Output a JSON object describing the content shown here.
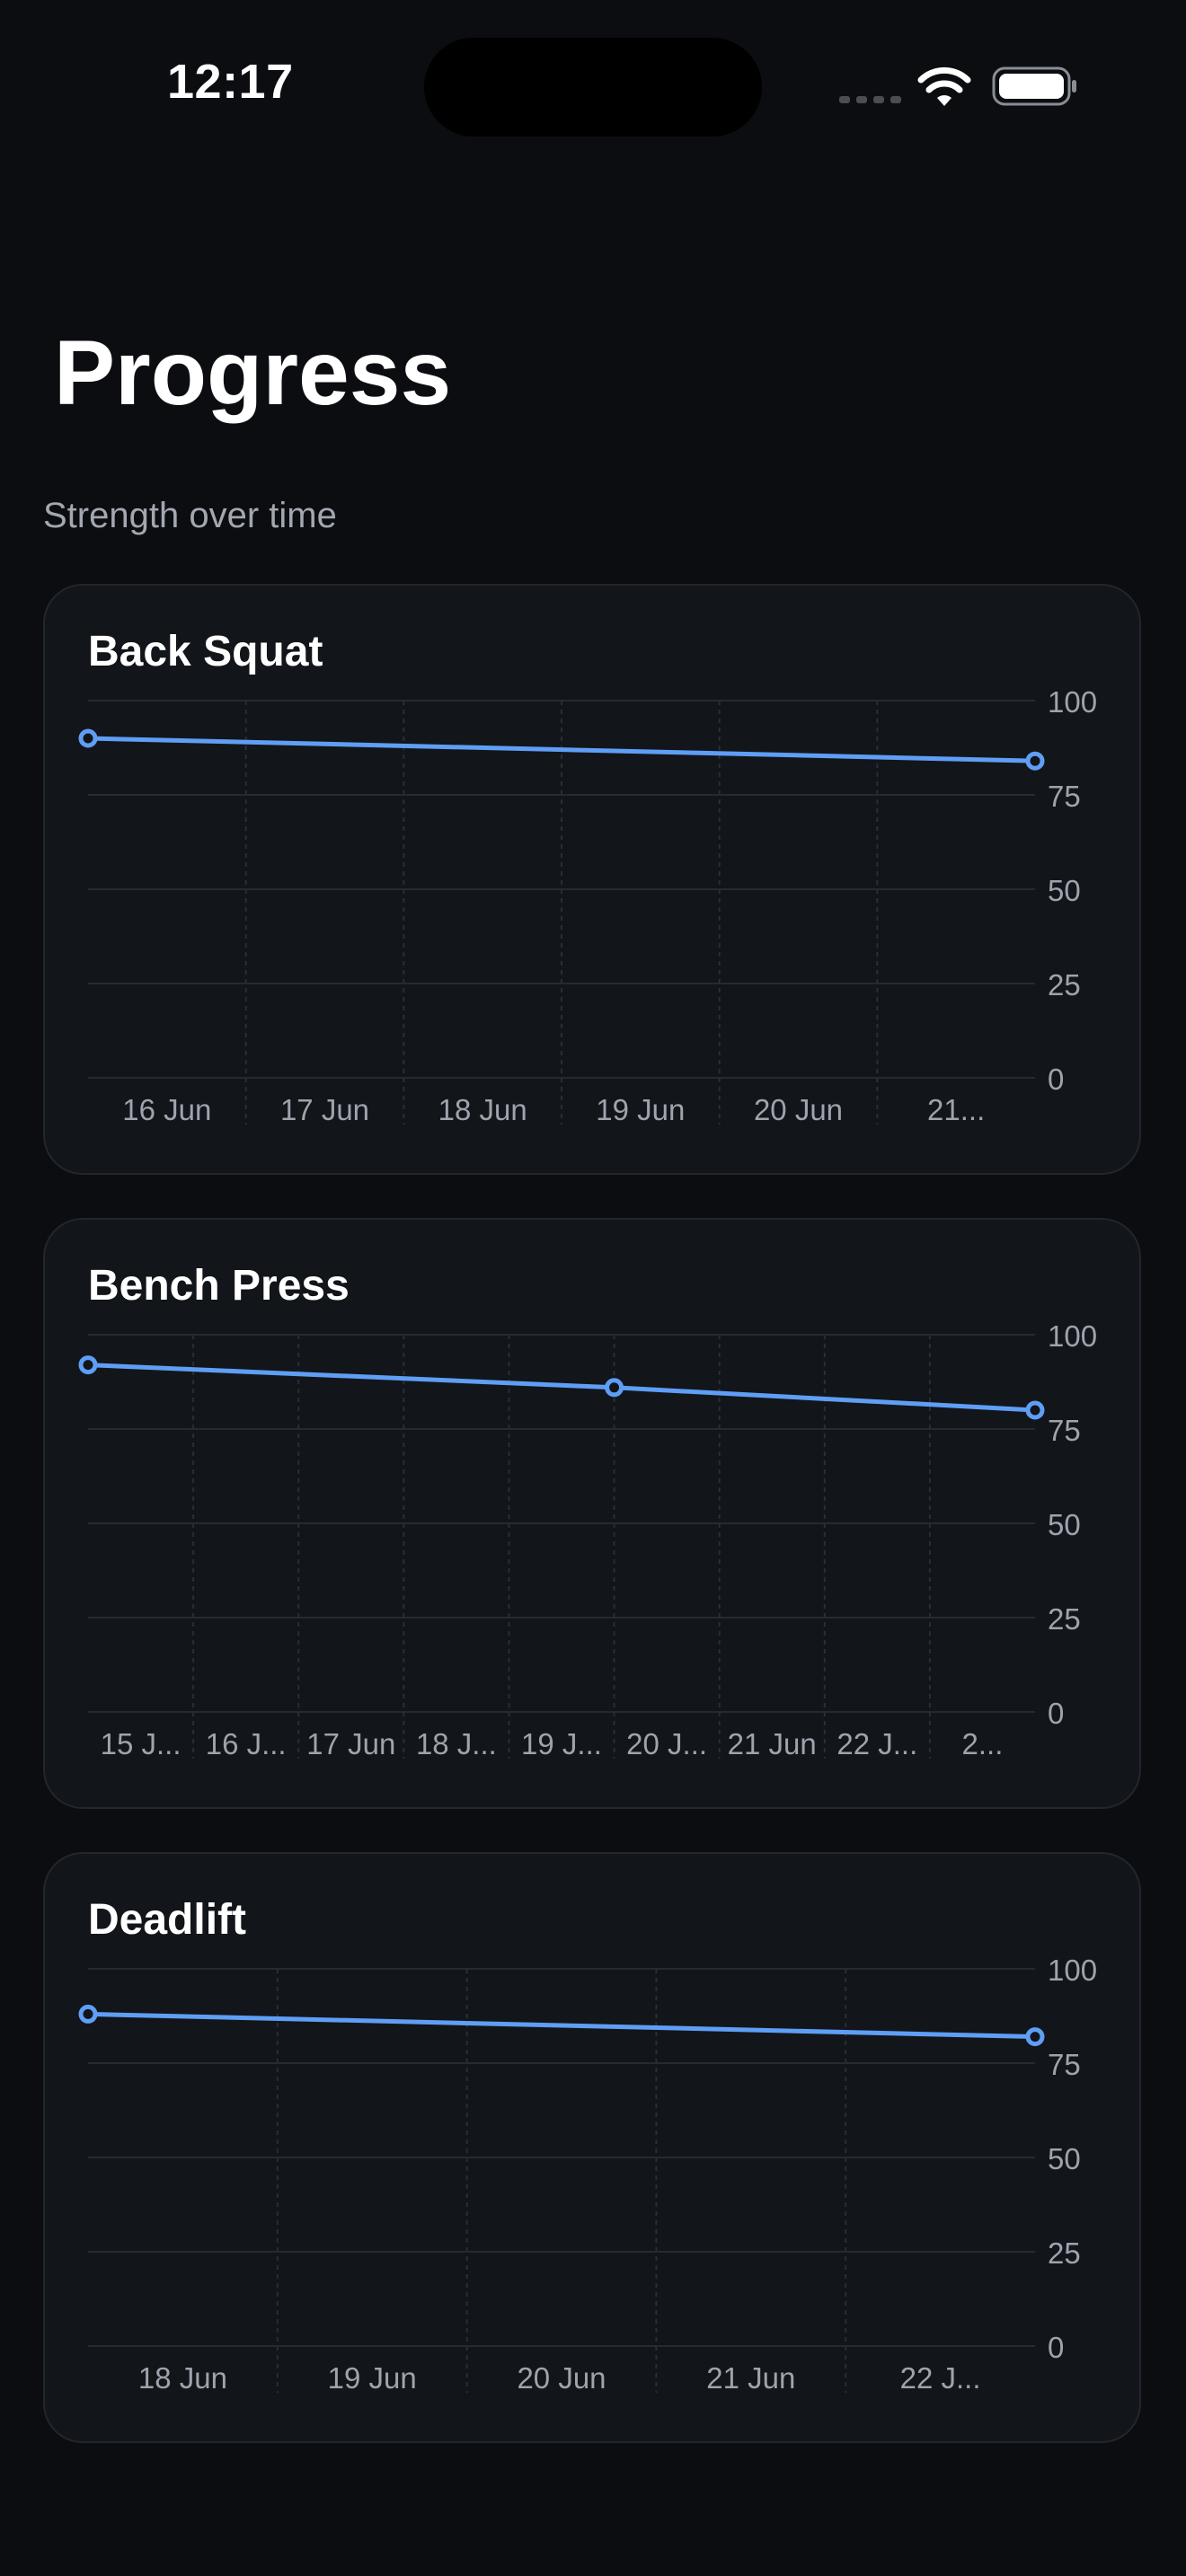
{
  "status_bar": {
    "time": "12:17"
  },
  "header": {
    "title": "Progress",
    "subtitle": "Strength over time"
  },
  "chart_data": [
    {
      "type": "line",
      "title": "Back Squat",
      "x_ticks": [
        "16 Jun",
        "17 Jun",
        "18 Jun",
        "19 Jun",
        "20 Jun",
        "21..."
      ],
      "tick_positions": [
        0.5,
        1.5,
        2.5,
        3.5,
        4.5,
        5.5
      ],
      "y_ticks": [
        100,
        75,
        50,
        25,
        0
      ],
      "ylim": [
        0,
        100
      ],
      "xlim": [
        0,
        6
      ],
      "grid": true,
      "series": [
        {
          "points": [
            {
              "x": 0,
              "y": 90
            },
            {
              "x": 6,
              "y": 84
            }
          ]
        }
      ]
    },
    {
      "type": "line",
      "title": "Bench Press",
      "x_ticks": [
        "15 J...",
        "16 J...",
        "17 Jun",
        "18 J...",
        "19 J...",
        "20 J...",
        "21 Jun",
        "22 J...",
        "2..."
      ],
      "tick_positions": [
        0.5,
        1.5,
        2.5,
        3.5,
        4.5,
        5.5,
        6.5,
        7.5,
        8.5
      ],
      "y_ticks": [
        100,
        75,
        50,
        25,
        0
      ],
      "ylim": [
        0,
        100
      ],
      "xlim": [
        0,
        9
      ],
      "grid": true,
      "series": [
        {
          "points": [
            {
              "x": 0,
              "y": 92
            },
            {
              "x": 5,
              "y": 86
            },
            {
              "x": 9,
              "y": 80
            }
          ]
        }
      ]
    },
    {
      "type": "line",
      "title": "Deadlift",
      "x_ticks": [
        "18 Jun",
        "19 Jun",
        "20 Jun",
        "21 Jun",
        "22 J..."
      ],
      "tick_positions": [
        0.5,
        1.5,
        2.5,
        3.5,
        4.5
      ],
      "y_ticks": [
        100,
        75,
        50,
        25,
        0
      ],
      "ylim": [
        0,
        100
      ],
      "xlim": [
        0,
        5
      ],
      "grid": true,
      "series": [
        {
          "points": [
            {
              "x": 0,
              "y": 88
            },
            {
              "x": 5,
              "y": 82
            }
          ]
        }
      ]
    }
  ],
  "colors": {
    "line": "#5f9ef5",
    "grid": "#262a31",
    "grid_vertical": "#2a2e35",
    "tick_label": "#9ea3ad",
    "card_bg": "#12151a",
    "dot_fill": "#12151a"
  }
}
